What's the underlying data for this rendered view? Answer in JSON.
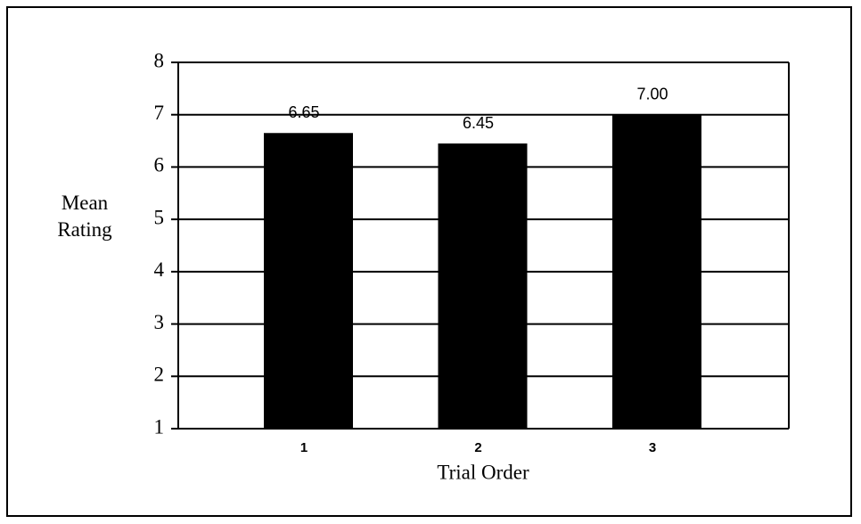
{
  "chart_data": {
    "type": "bar",
    "x_label": "Trial Order",
    "y_label": "Mean Rating",
    "categories": [
      "1",
      "2",
      "3"
    ],
    "values": [
      6.65,
      6.45,
      7.0
    ],
    "value_labels": [
      "6.65",
      "6.45",
      "7.00"
    ],
    "color": "#000000",
    "ylim": [
      1,
      8
    ],
    "yticks": [
      1,
      2,
      3,
      4,
      5,
      6,
      7,
      8
    ],
    "grid": true
  }
}
